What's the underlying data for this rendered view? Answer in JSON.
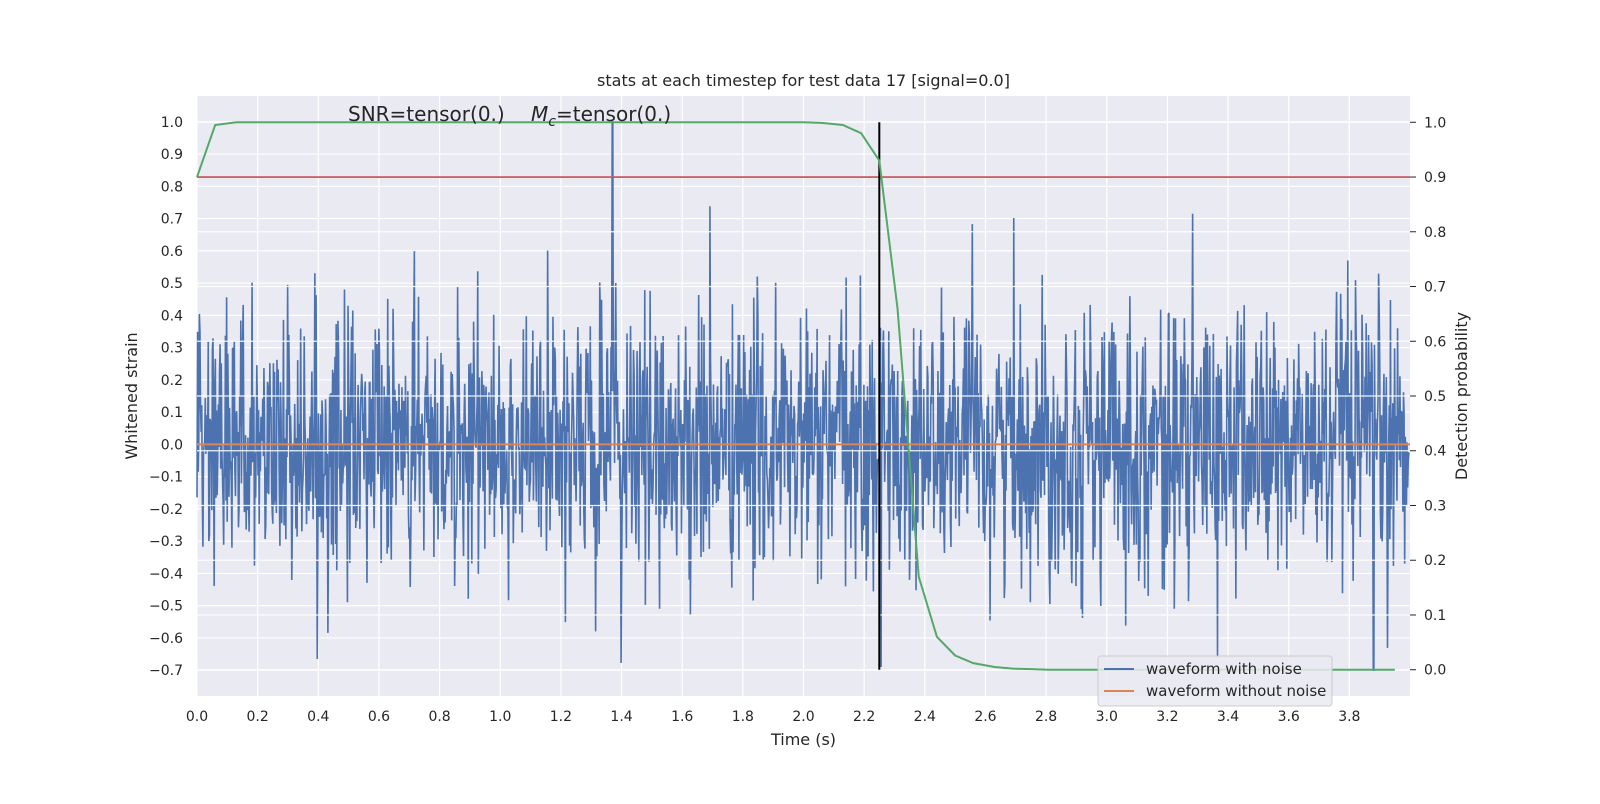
{
  "chart_data": {
    "type": "line",
    "title": "stats at each timestep for test data 17 [signal=0.0]",
    "annotation": {
      "snr": "SNR=tensor(0.)",
      "mc_symbol": "M",
      "mc_sub": "c",
      "mc_value": "=tensor(0.)"
    },
    "xlabel": "Time (s)",
    "ylabel_left": "Whitened strain",
    "ylabel_right": "Detection probability",
    "xlim": [
      0.0,
      4.0
    ],
    "ylim_left": [
      -0.78,
      1.08
    ],
    "ylim_right": [
      -0.048,
      1.048
    ],
    "x_ticks": [
      "0.0",
      "0.2",
      "0.4",
      "0.6",
      "0.8",
      "1.0",
      "1.2",
      "1.4",
      "1.6",
      "1.8",
      "2.0",
      "2.2",
      "2.4",
      "2.6",
      "2.8",
      "3.0",
      "3.2",
      "3.4",
      "3.6",
      "3.8"
    ],
    "y_ticks_left": [
      "1.0",
      "0.9",
      "0.8",
      "0.7",
      "0.6",
      "0.5",
      "0.4",
      "0.3",
      "0.2",
      "0.1",
      "0.0",
      "−0.1",
      "−0.2",
      "−0.3",
      "−0.4",
      "−0.5",
      "−0.6",
      "−0.7"
    ],
    "y_ticks_right": [
      "1.0",
      "0.9",
      "0.8",
      "0.7",
      "0.6",
      "0.5",
      "0.4",
      "0.3",
      "0.2",
      "0.1",
      "0.0"
    ],
    "grid": true,
    "legend_position": "bottom-right",
    "series": [
      {
        "name": "waveform with noise",
        "color": "#4c72b0",
        "axis": "left",
        "kind": "noise",
        "sample_count": 2048,
        "std_estimate": 0.2,
        "peak_max": 1.0,
        "peak_min": -0.7
      },
      {
        "name": "waveform without noise",
        "color": "#dd8452",
        "axis": "left",
        "kind": "constant",
        "value": 0.0
      },
      {
        "color": "#55a868",
        "axis": "right",
        "x": [
          0.0,
          0.06,
          0.13,
          0.2,
          0.5,
          1.0,
          1.5,
          2.0,
          2.06,
          2.13,
          2.19,
          2.25,
          2.31,
          2.38,
          2.44,
          2.5,
          2.56,
          2.63,
          2.69,
          2.75,
          2.81,
          3.0,
          3.5,
          3.95
        ],
        "y": [
          0.9,
          0.995,
          1.0,
          1.0,
          1.0,
          1.0,
          1.0,
          1.0,
          0.999,
          0.995,
          0.98,
          0.93,
          0.66,
          0.17,
          0.06,
          0.026,
          0.012,
          0.005,
          0.002,
          0.001,
          0.0,
          0.0,
          0.0,
          0.0
        ]
      }
    ],
    "threshold": {
      "color": "#c44e52",
      "axis": "right",
      "value": 0.9
    },
    "marker_line": {
      "color": "#000000",
      "x": 2.25,
      "y_top": 1.0,
      "y_bottom": 0.0,
      "axis": "right"
    },
    "colors": {
      "background": "#eaeaf2",
      "grid": "#ffffff",
      "text": "#262626",
      "legend_bg": "#eaeaf2",
      "legend_border": "#cccccc"
    }
  }
}
